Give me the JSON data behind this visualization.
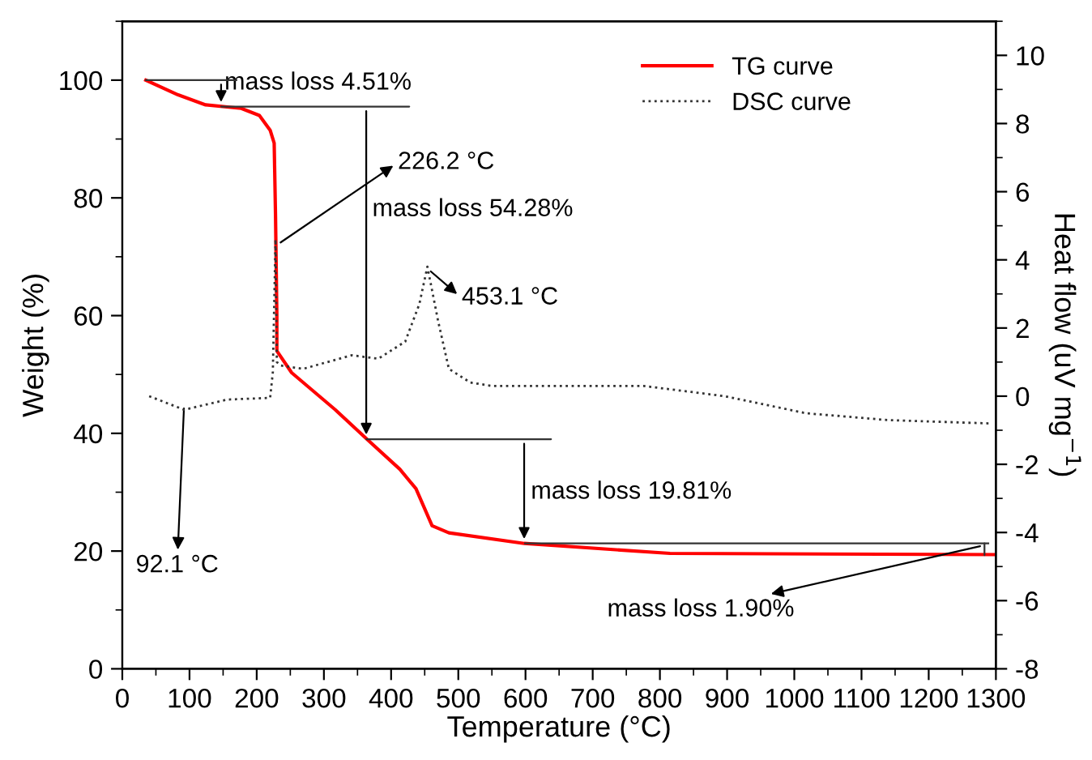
{
  "chart_data": {
    "type": "line",
    "xlabel": "Temperature (°C)",
    "ylabel": "Weight (%)",
    "y2label": "Heat flow (uV mg$^{−1}$)",
    "xlim": [
      0,
      1300
    ],
    "xticks": [
      0,
      100,
      200,
      300,
      400,
      500,
      600,
      700,
      800,
      900,
      1000,
      1100,
      1200,
      1300
    ],
    "ylim": [
      0,
      110
    ],
    "yticks": [
      0,
      20,
      40,
      60,
      80,
      100
    ],
    "y2lim": [
      -8,
      11
    ],
    "y2ticks": [
      -8,
      -6,
      -4,
      -2,
      0,
      2,
      4,
      6,
      8,
      10
    ],
    "grid": false,
    "ref_lines": [
      {
        "axis": "y",
        "value": 21.3,
        "color": "#333333",
        "line_style": "solid"
      }
    ],
    "legend": "top right",
    "marker": "none",
    "series": [
      {
        "name": "TG curve",
        "color": "#ff0000",
        "line_style": "solid",
        "x": [
          35,
          83,
          124,
          177,
          204,
          220,
          226,
          228,
          230,
          230,
          252,
          317,
          365,
          413,
          437,
          461,
          486,
          598,
          815,
          1298
        ],
        "values": [
          100,
          97.5,
          95.8,
          95.2,
          94,
          91.5,
          89.3,
          77,
          60,
          54,
          50.3,
          44,
          38.9,
          33.9,
          30.6,
          24.3,
          23.1,
          21.3,
          19.6,
          19.4
        ]
      },
      {
        "name": "DSC curve",
        "color": "#333333",
        "line_style": "dotted",
        "axis": "y2",
        "x": [
          40,
          92,
          156,
          220,
          224,
          228,
          230,
          236,
          269,
          341,
          381,
          421,
          442,
          454,
          470,
          486,
          518,
          550,
          615,
          776,
          896,
          1017,
          1138,
          1290
        ],
        "values": [
          0,
          -0.4,
          -0.1,
          -0.05,
          0.7,
          4.6,
          1.0,
          0.9,
          0.8,
          1.2,
          1.1,
          1.6,
          2.7,
          3.8,
          2.2,
          0.8,
          0.4,
          0.3,
          0.3,
          0.3,
          0,
          -0.5,
          -0.7,
          -0.8
        ]
      }
    ],
    "annotations": [
      {
        "text": "mass loss 4.51%",
        "x": 147,
        "y": 95.5
      },
      {
        "text": "226.2 °C",
        "x": 230,
        "y": 72
      },
      "mass loss 54.28%",
      {
        "text": "453.1 °C",
        "x": 454,
        "y": 68
      },
      {
        "text": "92.1 °C",
        "x": 92,
        "y": 45
      },
      {
        "text": "mass loss 19.81%",
        "x": 598,
        "y": 21.3
      },
      {
        "text": "mass loss 1.90%",
        "x": 1283,
        "y": 21
      }
    ]
  }
}
